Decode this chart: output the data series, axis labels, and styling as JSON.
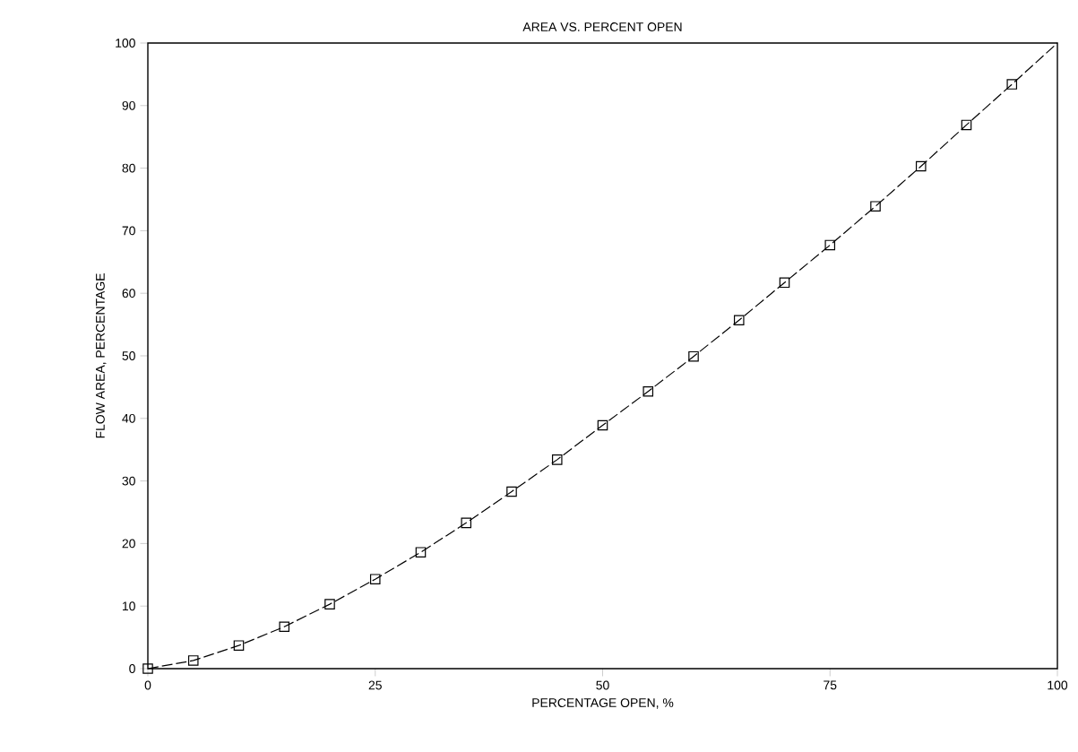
{
  "chart_data": {
    "type": "scatter",
    "title": "AREA VS. PERCENT OPEN",
    "xlabel": "PERCENTAGE OPEN, %",
    "ylabel": "FLOW AREA, PERCENTAGE",
    "series": [
      {
        "type": "line",
        "color": "#000000",
        "line_style": "dashed",
        "marker": "none",
        "x": [
          0,
          5,
          10,
          15,
          20,
          25,
          30,
          35,
          40,
          45,
          50,
          55,
          60,
          65,
          70,
          75,
          80,
          85,
          90,
          95,
          100
        ],
        "values": [
          0,
          1.3,
          3.7,
          6.7,
          10.3,
          14.3,
          18.6,
          23.3,
          28.3,
          33.4,
          38.9,
          44.3,
          49.9,
          55.7,
          61.7,
          67.7,
          73.9,
          80.3,
          86.9,
          93.4,
          100
        ]
      },
      {
        "color": "#000000",
        "marker": "square",
        "x": [
          0,
          5,
          10,
          15,
          20,
          25,
          30,
          35,
          40,
          45,
          50,
          55,
          60,
          65,
          70,
          75,
          80,
          85,
          90,
          95
        ],
        "values": [
          0,
          1.3,
          3.7,
          6.7,
          10.3,
          14.3,
          18.6,
          23.3,
          28.3,
          33.4,
          38.9,
          44.3,
          49.9,
          55.7,
          61.7,
          67.7,
          73.9,
          80.3,
          86.9,
          93.4
        ]
      }
    ],
    "xlim": [
      0,
      100
    ],
    "ylim": [
      0,
      100
    ],
    "xticks": [
      0,
      25,
      50,
      75,
      100
    ],
    "yticks": [
      0,
      10,
      20,
      30,
      40,
      50,
      60,
      70,
      80,
      90,
      100
    ],
    "grid": false
  }
}
